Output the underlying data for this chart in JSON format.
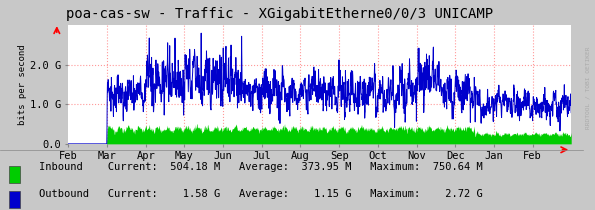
{
  "title": "poa-cas-sw - Traffic - XGigabitEtherne0/0/3 UNICAMP",
  "ylabel": "bits per second",
  "bg_color": "#c8c8c8",
  "plot_bg_color": "#ffffff",
  "grid_color": "#ff9999",
  "inbound_color": "#00cc00",
  "outbound_color": "#0000cc",
  "ylim": [
    0,
    3000000000
  ],
  "ytick_labels": [
    "0.0",
    "1.0 G",
    "2.0 G"
  ],
  "month_labels": [
    "Feb",
    "Mar",
    "Apr",
    "May",
    "Jun",
    "Jul",
    "Aug",
    "Sep",
    "Oct",
    "Nov",
    "Dec",
    "Jan",
    "Feb"
  ],
  "legend": [
    {
      "label": "Inbound",
      "color": "#00cc00",
      "current": "504.18 M",
      "average": "373.95 M",
      "maximum": "750.64 M"
    },
    {
      "label": "Outbound",
      "color": "#0000cc",
      "current": "  1.58 G",
      "average": "  1.15 G",
      "maximum": "  2.72 G"
    }
  ],
  "watermark": "RRDTOOL / TOBI OETIKER",
  "title_fontsize": 10,
  "tick_fontsize": 7.5,
  "legend_fontsize": 7.5
}
